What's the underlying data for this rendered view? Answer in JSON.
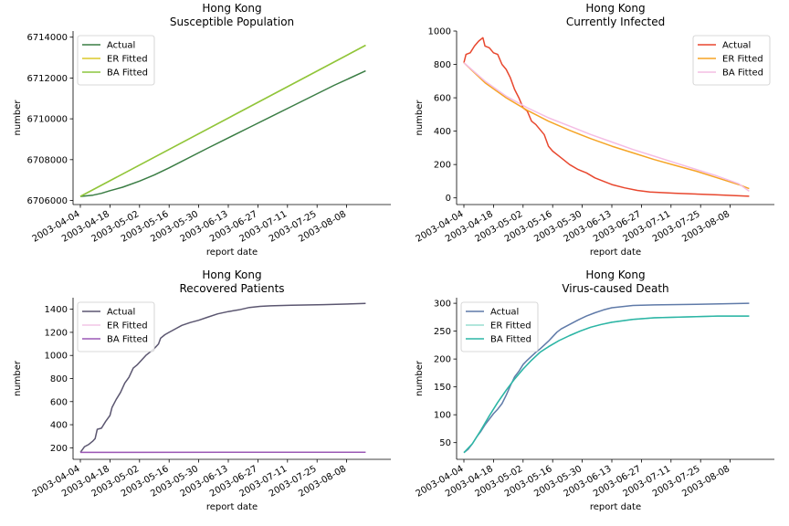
{
  "chart_data": [
    {
      "type": "line",
      "title_lines": [
        "Hong Kong",
        "Susceptible Population"
      ],
      "xlabel": "report date",
      "ylabel": "number",
      "ylim": [
        6705800,
        6714300
      ],
      "yticks": [
        6706000,
        6708000,
        6710000,
        6712000,
        6714000
      ],
      "x_day_range": [
        0,
        140
      ],
      "xticks": [
        {
          "day": 0,
          "label": "2003-04-04"
        },
        {
          "day": 14,
          "label": "2003-04-18"
        },
        {
          "day": 28,
          "label": "2003-05-02"
        },
        {
          "day": 42,
          "label": "2003-05-16"
        },
        {
          "day": 56,
          "label": "2003-05-30"
        },
        {
          "day": 70,
          "label": "2003-06-13"
        },
        {
          "day": 84,
          "label": "2003-06-27"
        },
        {
          "day": 98,
          "label": "2003-07-11"
        },
        {
          "day": 112,
          "label": "2003-07-25"
        },
        {
          "day": 126,
          "label": "2003-08-08"
        }
      ],
      "legend_position": "top-left",
      "series": [
        {
          "name": "Actual",
          "color": "#3a7d44",
          "points": [
            [
              0,
              6706200
            ],
            [
              6,
              6706260
            ],
            [
              10,
              6706350
            ],
            [
              14,
              6706480
            ],
            [
              20,
              6706650
            ],
            [
              28,
              6706950
            ],
            [
              35,
              6707250
            ],
            [
              42,
              6707600
            ],
            [
              60,
              6708550
            ],
            [
              80,
              6709580
            ],
            [
              100,
              6710610
            ],
            [
              120,
              6711640
            ],
            [
              135,
              6712350
            ]
          ]
        },
        {
          "name": "ER Fitted",
          "color": "#dcc82a",
          "points": [
            [
              0,
              6706200
            ],
            [
              135,
              6713600
            ]
          ]
        },
        {
          "name": "BA Fitted",
          "color": "#8cc63e",
          "points": [
            [
              0,
              6706200
            ],
            [
              135,
              6713600
            ]
          ]
        }
      ]
    },
    {
      "type": "line",
      "title_lines": [
        "Hong Kong",
        "Currently Infected"
      ],
      "xlabel": "report date",
      "ylabel": "number",
      "ylim": [
        -40,
        1000
      ],
      "yticks": [
        0,
        200,
        400,
        600,
        800,
        1000
      ],
      "x_day_range": [
        0,
        140
      ],
      "xticks": [
        {
          "day": 0,
          "label": "2003-04-04"
        },
        {
          "day": 14,
          "label": "2003-04-18"
        },
        {
          "day": 28,
          "label": "2003-05-02"
        },
        {
          "day": 42,
          "label": "2003-05-16"
        },
        {
          "day": 56,
          "label": "2003-05-30"
        },
        {
          "day": 70,
          "label": "2003-06-13"
        },
        {
          "day": 84,
          "label": "2003-06-27"
        },
        {
          "day": 98,
          "label": "2003-07-11"
        },
        {
          "day": 112,
          "label": "2003-07-25"
        },
        {
          "day": 126,
          "label": "2003-08-08"
        }
      ],
      "legend_position": "top-right",
      "series": [
        {
          "name": "Actual",
          "color": "#e8472e",
          "points": [
            [
              0,
              810
            ],
            [
              1,
              860
            ],
            [
              3,
              870
            ],
            [
              5,
              910
            ],
            [
              7,
              940
            ],
            [
              9,
              960
            ],
            [
              10,
              910
            ],
            [
              12,
              900
            ],
            [
              14,
              870
            ],
            [
              16,
              860
            ],
            [
              18,
              800
            ],
            [
              20,
              770
            ],
            [
              22,
              720
            ],
            [
              24,
              650
            ],
            [
              26,
              600
            ],
            [
              28,
              540
            ],
            [
              30,
              520
            ],
            [
              32,
              460
            ],
            [
              34,
              440
            ],
            [
              36,
              410
            ],
            [
              38,
              380
            ],
            [
              40,
              310
            ],
            [
              42,
              280
            ],
            [
              46,
              240
            ],
            [
              50,
              200
            ],
            [
              54,
              170
            ],
            [
              58,
              150
            ],
            [
              62,
              120
            ],
            [
              66,
              100
            ],
            [
              70,
              80
            ],
            [
              76,
              60
            ],
            [
              82,
              45
            ],
            [
              88,
              35
            ],
            [
              100,
              28
            ],
            [
              120,
              18
            ],
            [
              135,
              10
            ]
          ]
        },
        {
          "name": "ER Fitted",
          "color": "#f5a425",
          "points": [
            [
              0,
              810
            ],
            [
              10,
              690
            ],
            [
              20,
              600
            ],
            [
              30,
              525
            ],
            [
              40,
              460
            ],
            [
              50,
              405
            ],
            [
              60,
              355
            ],
            [
              70,
              310
            ],
            [
              80,
              270
            ],
            [
              90,
              230
            ],
            [
              100,
              195
            ],
            [
              110,
              160
            ],
            [
              120,
              120
            ],
            [
              130,
              80
            ],
            [
              135,
              55
            ]
          ]
        },
        {
          "name": "BA Fitted",
          "color": "#f4bde4",
          "points": [
            [
              0,
              810
            ],
            [
              10,
              700
            ],
            [
              20,
              610
            ],
            [
              30,
              540
            ],
            [
              40,
              480
            ],
            [
              50,
              430
            ],
            [
              60,
              380
            ],
            [
              70,
              335
            ],
            [
              80,
              290
            ],
            [
              90,
              250
            ],
            [
              100,
              210
            ],
            [
              110,
              170
            ],
            [
              120,
              130
            ],
            [
              130,
              85
            ],
            [
              135,
              40
            ]
          ]
        }
      ]
    },
    {
      "type": "line",
      "title_lines": [
        "Hong Kong",
        "Recovered Patients"
      ],
      "xlabel": "report date",
      "ylabel": "number",
      "ylim": [
        100,
        1500
      ],
      "yticks": [
        200,
        400,
        600,
        800,
        1000,
        1200,
        1400
      ],
      "x_day_range": [
        0,
        140
      ],
      "xticks": [
        {
          "day": 0,
          "label": "2003-04-04"
        },
        {
          "day": 14,
          "label": "2003-04-18"
        },
        {
          "day": 28,
          "label": "2003-05-02"
        },
        {
          "day": 42,
          "label": "2003-05-16"
        },
        {
          "day": 56,
          "label": "2003-05-30"
        },
        {
          "day": 70,
          "label": "2003-06-13"
        },
        {
          "day": 84,
          "label": "2003-06-27"
        },
        {
          "day": 98,
          "label": "2003-07-11"
        },
        {
          "day": 112,
          "label": "2003-07-25"
        },
        {
          "day": 126,
          "label": "2003-08-08"
        }
      ],
      "legend_position": "top-left",
      "series": [
        {
          "name": "Actual",
          "color": "#5b5670",
          "points": [
            [
              0,
              160
            ],
            [
              2,
              210
            ],
            [
              4,
              230
            ],
            [
              6,
              260
            ],
            [
              7,
              280
            ],
            [
              8,
              360
            ],
            [
              10,
              370
            ],
            [
              12,
              430
            ],
            [
              14,
              480
            ],
            [
              15,
              550
            ],
            [
              17,
              620
            ],
            [
              19,
              680
            ],
            [
              21,
              760
            ],
            [
              23,
              810
            ],
            [
              25,
              890
            ],
            [
              27,
              920
            ],
            [
              29,
              960
            ],
            [
              31,
              1000
            ],
            [
              33,
              1030
            ],
            [
              35,
              1060
            ],
            [
              37,
              1100
            ],
            [
              38,
              1150
            ],
            [
              40,
              1180
            ],
            [
              42,
              1200
            ],
            [
              45,
              1230
            ],
            [
              48,
              1260
            ],
            [
              52,
              1285
            ],
            [
              56,
              1305
            ],
            [
              60,
              1330
            ],
            [
              65,
              1360
            ],
            [
              70,
              1380
            ],
            [
              75,
              1395
            ],
            [
              80,
              1415
            ],
            [
              85,
              1425
            ],
            [
              90,
              1430
            ],
            [
              100,
              1435
            ],
            [
              115,
              1440
            ],
            [
              135,
              1450
            ]
          ]
        },
        {
          "name": "ER Fitted",
          "color": "#f2c6e6",
          "points": [
            [
              0,
              160
            ],
            [
              135,
              162
            ]
          ]
        },
        {
          "name": "BA Fitted",
          "color": "#9b59b6",
          "points": [
            [
              0,
              160
            ],
            [
              135,
              162
            ]
          ]
        }
      ]
    },
    {
      "type": "line",
      "title_lines": [
        "Hong Kong",
        "Virus-caused Death"
      ],
      "xlabel": "report date",
      "ylabel": "number",
      "ylim": [
        20,
        310
      ],
      "yticks": [
        50,
        100,
        150,
        200,
        250,
        300
      ],
      "x_day_range": [
        0,
        140
      ],
      "xticks": [
        {
          "day": 0,
          "label": "2003-04-04"
        },
        {
          "day": 14,
          "label": "2003-04-18"
        },
        {
          "day": 28,
          "label": "2003-05-02"
        },
        {
          "day": 42,
          "label": "2003-05-16"
        },
        {
          "day": 56,
          "label": "2003-05-30"
        },
        {
          "day": 70,
          "label": "2003-06-13"
        },
        {
          "day": 84,
          "label": "2003-06-27"
        },
        {
          "day": 98,
          "label": "2003-07-11"
        },
        {
          "day": 112,
          "label": "2003-07-25"
        },
        {
          "day": 126,
          "label": "2003-08-08"
        }
      ],
      "legend_position": "top-left",
      "series": [
        {
          "name": "Actual",
          "color": "#5f7aa8",
          "points": [
            [
              0,
              32
            ],
            [
              2,
              38
            ],
            [
              4,
              48
            ],
            [
              6,
              60
            ],
            [
              8,
              70
            ],
            [
              10,
              82
            ],
            [
              12,
              92
            ],
            [
              14,
              102
            ],
            [
              16,
              110
            ],
            [
              18,
              120
            ],
            [
              20,
              135
            ],
            [
              22,
              152
            ],
            [
              24,
              168
            ],
            [
              26,
              178
            ],
            [
              28,
              190
            ],
            [
              30,
              198
            ],
            [
              32,
              205
            ],
            [
              34,
              212
            ],
            [
              36,
              218
            ],
            [
              38,
              225
            ],
            [
              40,
              232
            ],
            [
              42,
              240
            ],
            [
              44,
              248
            ],
            [
              46,
              254
            ],
            [
              50,
              262
            ],
            [
              54,
              270
            ],
            [
              58,
              277
            ],
            [
              62,
              283
            ],
            [
              66,
              288
            ],
            [
              70,
              292
            ],
            [
              75,
              294
            ],
            [
              80,
              296
            ],
            [
              90,
              297
            ],
            [
              110,
              298
            ],
            [
              135,
              300
            ]
          ]
        },
        {
          "name": "ER Fitted",
          "color": "#98ddd0",
          "points": [
            [
              0,
              32
            ],
            [
              4,
              48
            ],
            [
              8,
              72
            ],
            [
              12,
              98
            ],
            [
              16,
              122
            ],
            [
              20,
              144
            ],
            [
              24,
              164
            ],
            [
              28,
              182
            ],
            [
              32,
              198
            ],
            [
              36,
              212
            ],
            [
              40,
              222
            ],
            [
              45,
              233
            ],
            [
              50,
              242
            ],
            [
              55,
              250
            ],
            [
              60,
              257
            ],
            [
              65,
              262
            ],
            [
              70,
              266
            ],
            [
              80,
              271
            ],
            [
              90,
              274
            ],
            [
              100,
              275
            ],
            [
              110,
              276
            ],
            [
              120,
              277
            ],
            [
              135,
              277
            ]
          ]
        },
        {
          "name": "BA Fitted",
          "color": "#2cb5a5",
          "points": [
            [
              0,
              32
            ],
            [
              4,
              48
            ],
            [
              8,
              72
            ],
            [
              12,
              98
            ],
            [
              16,
              122
            ],
            [
              20,
              144
            ],
            [
              24,
              164
            ],
            [
              28,
              182
            ],
            [
              32,
              198
            ],
            [
              36,
              212
            ],
            [
              40,
              222
            ],
            [
              45,
              233
            ],
            [
              50,
              242
            ],
            [
              55,
              250
            ],
            [
              60,
              257
            ],
            [
              65,
              262
            ],
            [
              70,
              266
            ],
            [
              80,
              271
            ],
            [
              90,
              274
            ],
            [
              100,
              275
            ],
            [
              110,
              276
            ],
            [
              120,
              277
            ],
            [
              135,
              277
            ]
          ]
        }
      ]
    }
  ]
}
